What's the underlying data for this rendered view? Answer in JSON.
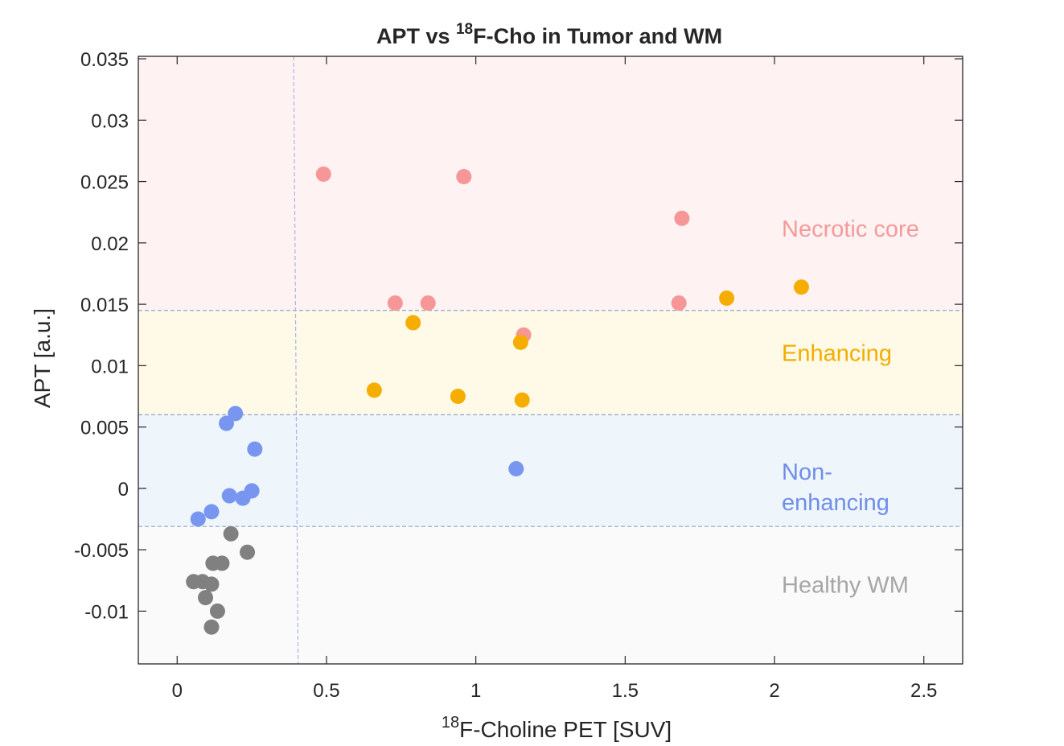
{
  "chart_data": {
    "type": "scatter",
    "title": {
      "prefix": "APT vs ",
      "superscript": "18",
      "suffix": "F-Cho in Tumor and WM"
    },
    "xlabel": {
      "superscript": "18",
      "text": "F-Choline PET [SUV]"
    },
    "ylabel": "APT [a.u.]",
    "xlim": [
      -0.13,
      2.63
    ],
    "ylim": [
      -0.0143,
      0.0352
    ],
    "xticks": [
      0,
      0.5,
      1,
      1.5,
      2,
      2.5
    ],
    "xtick_labels": [
      "0",
      "0.5",
      "1",
      "1.5",
      "2",
      "2.5"
    ],
    "yticks": [
      -0.01,
      -0.005,
      0,
      0.005,
      0.01,
      0.015,
      0.02,
      0.025,
      0.03,
      0.035
    ],
    "ytick_labels": [
      "-0.01",
      "-0.005",
      "0",
      "0.005",
      "0.01",
      "0.015",
      "0.02",
      "0.025",
      "0.03",
      "0.035"
    ],
    "thresholds": {
      "apt_enhancing_necrotic": 0.0145,
      "apt_nonenh_enhancing": 0.006,
      "apt_healthy_nonenh": -0.0031,
      "cho_vertical_bottom": 0.405,
      "cho_vertical_top": 0.39
    },
    "regions": [
      {
        "name": "Necrotic core",
        "label_lines": [
          "Necrotic core"
        ],
        "y_from": 0.0145,
        "y_to": 0.0352,
        "fill": "#fff2f2",
        "text_color": "#f59a9a",
        "label_y": 0.0205
      },
      {
        "name": "Enhancing",
        "label_lines": [
          "Enhancing"
        ],
        "y_from": 0.006,
        "y_to": 0.0145,
        "fill": "#fffae8",
        "text_color": "#f2ae00",
        "label_y": 0.0104
      },
      {
        "name": "Non-enhancing",
        "label_lines": [
          "Non-",
          "enhancing"
        ],
        "y_from": -0.0031,
        "y_to": 0.006,
        "fill": "#eef5fb",
        "text_color": "#6f8ee8",
        "label_y": 0.0007
      },
      {
        "name": "Healthy WM",
        "label_lines": [
          "Healthy WM"
        ],
        "y_from": -0.0143,
        "y_to": -0.0031,
        "fill": "#fafafa",
        "text_color": "#a6a6a6",
        "label_y": -0.0085
      }
    ],
    "series": [
      {
        "name": "Necrotic core",
        "color": "#f79696",
        "points": [
          {
            "x": 0.49,
            "y": 0.0256
          },
          {
            "x": 0.96,
            "y": 0.0254
          },
          {
            "x": 1.69,
            "y": 0.022
          },
          {
            "x": 0.73,
            "y": 0.0151
          },
          {
            "x": 0.84,
            "y": 0.0151
          },
          {
            "x": 1.68,
            "y": 0.0151
          },
          {
            "x": 1.16,
            "y": 0.0125
          }
        ]
      },
      {
        "name": "Enhancing",
        "color": "#f5ae00",
        "points": [
          {
            "x": 2.09,
            "y": 0.0164
          },
          {
            "x": 1.84,
            "y": 0.0155
          },
          {
            "x": 0.79,
            "y": 0.0135
          },
          {
            "x": 1.15,
            "y": 0.0119
          },
          {
            "x": 0.66,
            "y": 0.008
          },
          {
            "x": 0.94,
            "y": 0.0075
          },
          {
            "x": 1.155,
            "y": 0.0072
          }
        ]
      },
      {
        "name": "Non-enhancing",
        "color": "#7896f0",
        "points": [
          {
            "x": 0.195,
            "y": 0.0061
          },
          {
            "x": 0.165,
            "y": 0.0053
          },
          {
            "x": 0.26,
            "y": 0.0032
          },
          {
            "x": 1.135,
            "y": 0.0016
          },
          {
            "x": 0.25,
            "y": -0.0002
          },
          {
            "x": 0.175,
            "y": -0.0006
          },
          {
            "x": 0.22,
            "y": -0.0008
          },
          {
            "x": 0.115,
            "y": -0.0019
          },
          {
            "x": 0.07,
            "y": -0.0025
          }
        ]
      },
      {
        "name": "Healthy WM",
        "color": "#808080",
        "points": [
          {
            "x": 0.18,
            "y": -0.0037
          },
          {
            "x": 0.235,
            "y": -0.0052
          },
          {
            "x": 0.12,
            "y": -0.0061
          },
          {
            "x": 0.15,
            "y": -0.0061
          },
          {
            "x": 0.055,
            "y": -0.0076
          },
          {
            "x": 0.085,
            "y": -0.0076
          },
          {
            "x": 0.115,
            "y": -0.0078
          },
          {
            "x": 0.095,
            "y": -0.0089
          },
          {
            "x": 0.135,
            "y": -0.01
          },
          {
            "x": 0.115,
            "y": -0.0113
          }
        ]
      }
    ]
  }
}
